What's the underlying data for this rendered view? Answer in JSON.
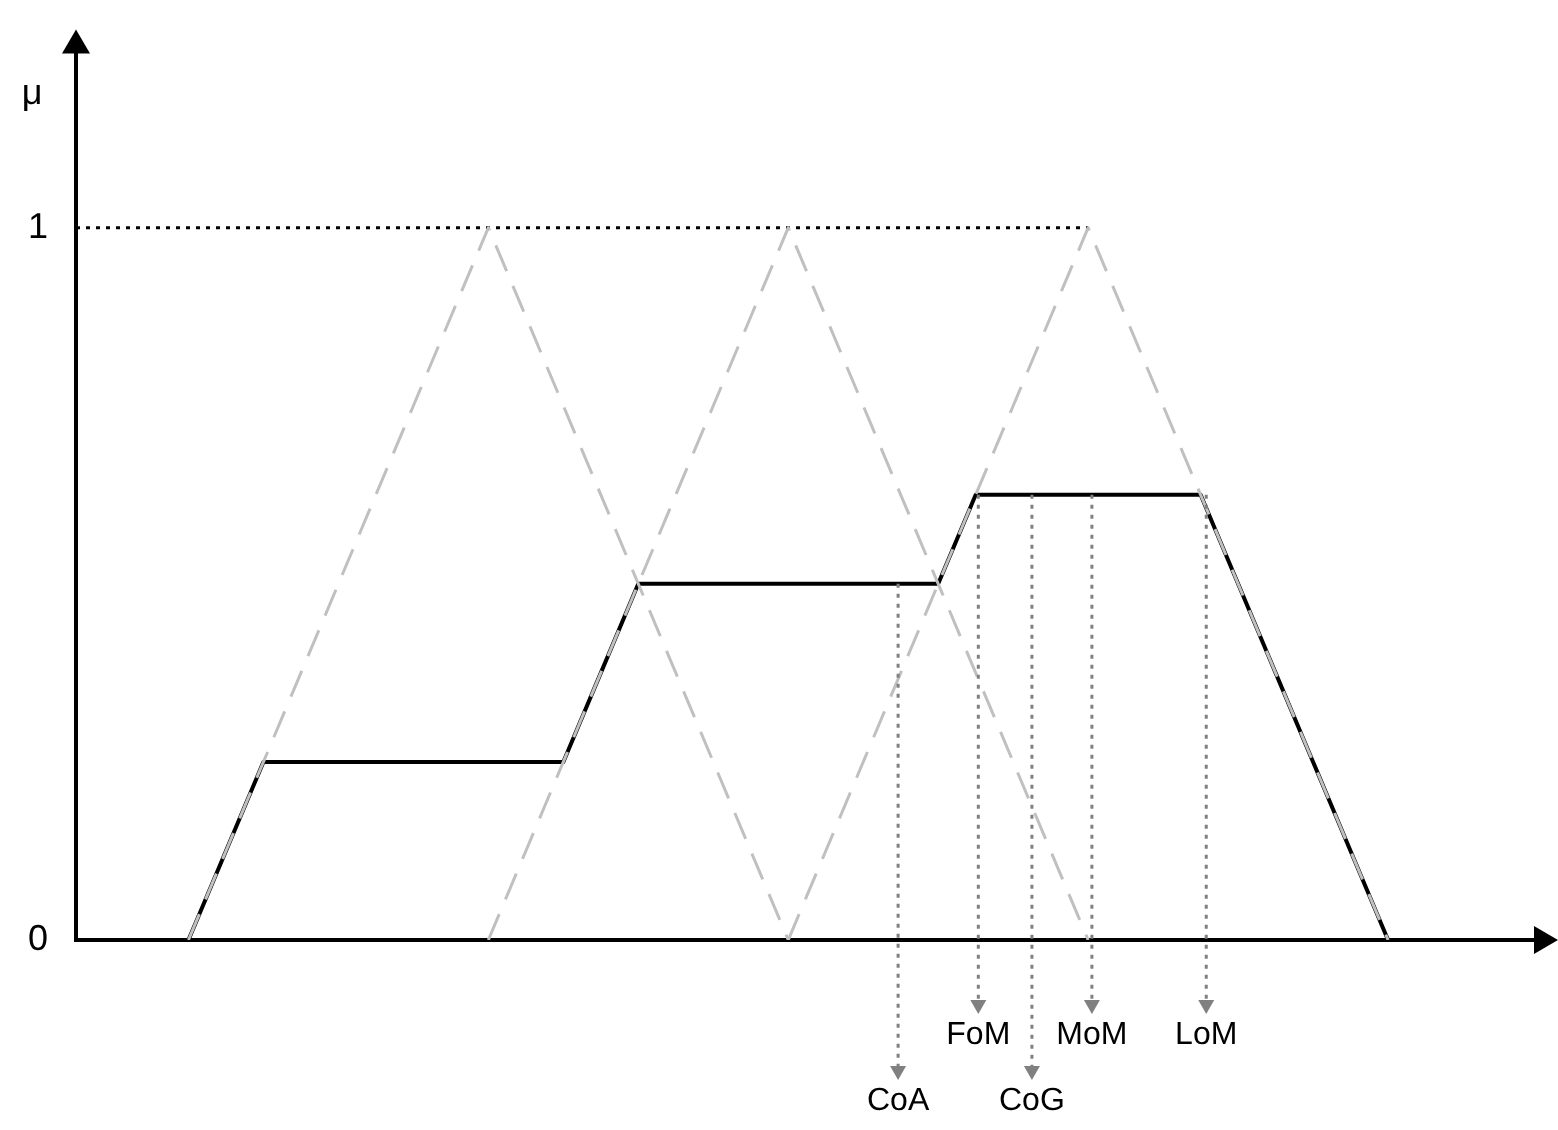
{
  "chart_data": {
    "type": "line",
    "ylabel": "μ",
    "annotations": [
      "CoA",
      "FoM",
      "CoG",
      "MoM",
      "LoM"
    ],
    "categories": [
      null,
      null,
      null,
      null,
      null,
      null,
      null,
      null,
      null,
      null,
      null,
      null,
      null,
      null,
      null,
      null,
      null,
      null,
      null,
      null,
      null,
      null,
      null,
      null,
      null,
      null,
      null,
      null,
      null,
      null,
      null,
      null,
      null,
      null,
      null,
      null,
      null,
      null,
      null,
      null
    ],
    "series": [
      {
        "color": "#c0c0c0",
        "line_style": "dashed",
        "values": [
          null,
          null,
          null,
          0,
          0.125,
          0.25,
          0.375,
          0.5,
          0.625,
          0.75,
          0.875,
          1,
          0.875,
          0.75,
          0.625,
          0.5,
          0.375,
          0.25,
          0.125,
          0,
          null,
          null,
          null,
          null,
          null,
          null,
          null,
          null,
          null,
          null,
          null,
          null,
          null,
          null,
          null,
          null,
          null,
          null,
          null,
          null
        ]
      },
      {
        "color": "#c0c0c0",
        "line_style": "dashed",
        "values": [
          null,
          null,
          null,
          null,
          null,
          null,
          null,
          null,
          null,
          null,
          null,
          0,
          0.125,
          0.25,
          0.375,
          0.5,
          0.625,
          0.75,
          0.875,
          1,
          0.875,
          0.75,
          0.625,
          0.5,
          0.375,
          0.25,
          0.125,
          0,
          null,
          null,
          null,
          null,
          null,
          null,
          null,
          null,
          null,
          null,
          null,
          null
        ]
      },
      {
        "color": "#c0c0c0",
        "line_style": "dashed",
        "values": [
          null,
          null,
          null,
          null,
          null,
          null,
          null,
          null,
          null,
          null,
          null,
          null,
          null,
          null,
          null,
          null,
          null,
          null,
          null,
          0,
          0.125,
          0.25,
          0.375,
          0.5,
          0.625,
          0.75,
          0.875,
          1,
          0.875,
          0.75,
          0.625,
          0.5,
          0.375,
          0.25,
          0.125,
          0,
          null,
          null,
          null,
          null
        ]
      },
      {
        "color": "#000000",
        "line_style": "dotted",
        "values": [
          1,
          1,
          1,
          1,
          1,
          1,
          1,
          1,
          1,
          1,
          1,
          1,
          1,
          1,
          1,
          1,
          1,
          1,
          1,
          1,
          1,
          1,
          1,
          1,
          1,
          1,
          1,
          1,
          null,
          null,
          null,
          null,
          null,
          null,
          null,
          null,
          null,
          null,
          null,
          null
        ]
      },
      {
        "color": "#000000",
        "line_style": "solid",
        "values": [
          null,
          null,
          null,
          0,
          0.125,
          0.25,
          0.25,
          0.25,
          0.25,
          0.25,
          0.25,
          0.25,
          0.25,
          0.25,
          0.375,
          0.5,
          0.5,
          0.5,
          0.5,
          0.5,
          0.5,
          0.5,
          0.5,
          0.5,
          0.625,
          0.625,
          0.625,
          0.625,
          0.625,
          0.625,
          0.625,
          0.5,
          0.375,
          0.25,
          0.125,
          0,
          null,
          null,
          null,
          null
        ]
      }
    ],
    "ylim": [
      0,
      1.25
    ],
    "yticks": [
      0,
      1
    ],
    "tick_labels": "y",
    "marker": "none"
  }
}
